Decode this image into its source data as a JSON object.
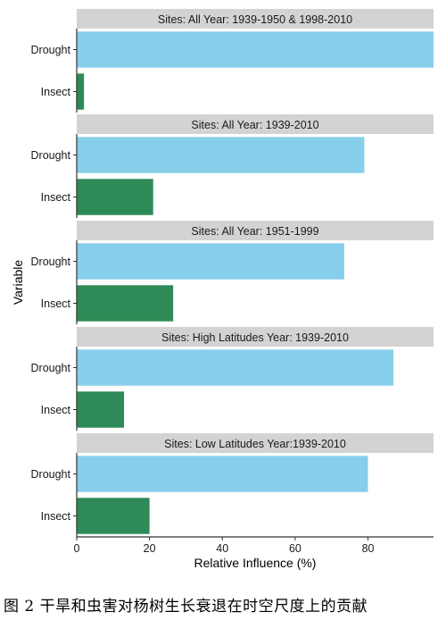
{
  "chart_data": [
    {
      "type": "bar",
      "orientation": "horizontal",
      "title": "Sites: All   Year: 1939-1950 & 1998-2010",
      "categories": [
        "Drought",
        "Insect"
      ],
      "values": [
        98,
        2
      ],
      "bar_colors": [
        "#87ceeb",
        "#2e8b57"
      ]
    },
    {
      "type": "bar",
      "orientation": "horizontal",
      "title": "Sites: All   Year: 1939-2010",
      "categories": [
        "Drought",
        "Insect"
      ],
      "values": [
        79,
        21
      ],
      "bar_colors": [
        "#87ceeb",
        "#2e8b57"
      ]
    },
    {
      "type": "bar",
      "orientation": "horizontal",
      "title": "Sites: All   Year: 1951-1999",
      "categories": [
        "Drought",
        "Insect"
      ],
      "values": [
        73.5,
        26.5
      ],
      "bar_colors": [
        "#87ceeb",
        "#2e8b57"
      ]
    },
    {
      "type": "bar",
      "orientation": "horizontal",
      "title": "Sites: High Latitudes   Year: 1939-2010",
      "categories": [
        "Drought",
        "Insect"
      ],
      "values": [
        87,
        13
      ],
      "bar_colors": [
        "#87ceeb",
        "#2e8b57"
      ]
    },
    {
      "type": "bar",
      "orientation": "horizontal",
      "title": "Sites: Low Latitudes   Year:1939-2010",
      "categories": [
        "Drought",
        "Insect"
      ],
      "values": [
        80,
        20
      ],
      "bar_colors": [
        "#87ceeb",
        "#2e8b57"
      ]
    }
  ],
  "axes": {
    "xlabel": "Relative Influence (%)",
    "ylabel": "Variable",
    "xlim": [
      0,
      98
    ],
    "xticks": [
      0,
      20,
      40,
      60,
      80
    ],
    "grid": false,
    "legend": "none"
  },
  "caption": "图 2  干旱和虫害对杨树生长衰退在时空尺度上的贡献"
}
